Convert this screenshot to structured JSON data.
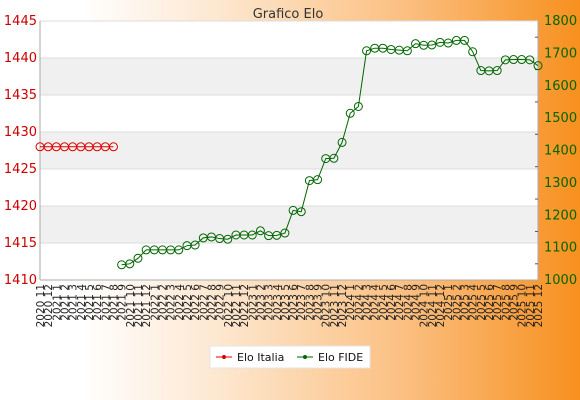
{
  "chart_data": {
    "type": "line",
    "title": "Grafico Elo",
    "x_categories": [
      "2020 11",
      "2020 12",
      "2021 1",
      "2021 2",
      "2021 3",
      "2021 4",
      "2021 5",
      "2021 6",
      "2021 7",
      "2021 8",
      "2021 9",
      "2021 10",
      "2021 11",
      "2021 12",
      "2022 1",
      "2022 2",
      "2022 3",
      "2022 4",
      "2022 5",
      "2022 6",
      "2022 7",
      "2022 8",
      "2022 9",
      "2022 10",
      "2022 11",
      "2022 12",
      "2023 1",
      "2023 2",
      "2023 3",
      "2023 4",
      "2023 5",
      "2023 6",
      "2023 7",
      "2023 8",
      "2023 9",
      "2023 10",
      "2023 11",
      "2023 12",
      "2024 1",
      "2024 2",
      "2024 3",
      "2024 4",
      "2024 5",
      "2024 6",
      "2024 7",
      "2024 8",
      "2024 9",
      "2024 10",
      "2024 11",
      "2024 12",
      "2025 1",
      "2025 2",
      "2025 3",
      "2025 4",
      "2025 5",
      "2025 6",
      "2025 7",
      "2025 8",
      "2025 9",
      "2025 10",
      "2025 11",
      "2025 12"
    ],
    "left_axis": {
      "min": 1410,
      "max": 1445,
      "ticks": [
        1410,
        1415,
        1420,
        1425,
        1430,
        1435,
        1440,
        1445
      ],
      "color": "#cc0000"
    },
    "right_axis": {
      "min": 1000,
      "max": 1800,
      "ticks": [
        1000,
        1100,
        1200,
        1300,
        1400,
        1500,
        1600,
        1700,
        1800
      ],
      "color": "#006600"
    },
    "grid": true,
    "legend_position": "bottom-center",
    "series": [
      {
        "name": "Elo Italia",
        "axis": "left",
        "color": "#dd0000",
        "start_index": 0,
        "values": [
          1428,
          1428,
          1428,
          1428,
          1428,
          1428,
          1428,
          1428,
          1428,
          1428
        ]
      },
      {
        "name": "Elo FIDE",
        "axis": "right",
        "color": "#006600",
        "start_index": 10,
        "values": [
          1047,
          1050,
          1067,
          1093,
          1093,
          1093,
          1093,
          1093,
          1106,
          1108,
          1130,
          1133,
          1128,
          1126,
          1139,
          1139,
          1139,
          1152,
          1137,
          1138,
          1145,
          1215,
          1211,
          1307,
          1310,
          1375,
          1376,
          1425,
          1515,
          1536,
          1708,
          1716,
          1716,
          1712,
          1710,
          1708,
          1730,
          1725,
          1726,
          1734,
          1732,
          1740,
          1740,
          1705,
          1647,
          1646,
          1647,
          1680,
          1681,
          1681,
          1680,
          1662
        ]
      }
    ]
  }
}
